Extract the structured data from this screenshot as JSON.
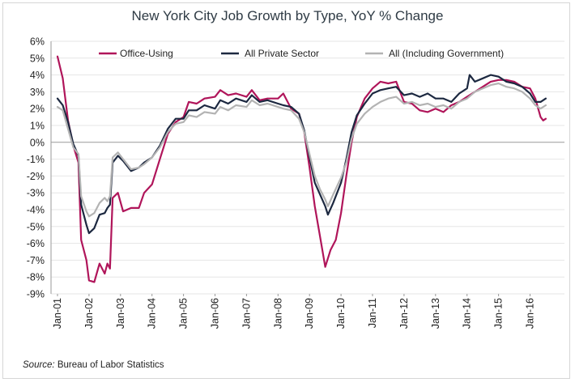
{
  "title": "New York City Job Growth by Type, YoY % Change",
  "source": {
    "label": "Source:",
    "text": "Bureau of Labor Statistics"
  },
  "colors": {
    "office": "#b0155a",
    "private": "#1c2840",
    "all": "#b3b3b3",
    "grid": "#e6e6e6"
  },
  "chart_data": {
    "type": "line",
    "title": "New York City Job Growth by Type, YoY % Change",
    "xlabel": "",
    "ylabel": "",
    "ylim": [
      -9,
      6
    ],
    "y_ticks": [
      "6%",
      "5%",
      "4%",
      "3%",
      "2%",
      "1%",
      "0%",
      "-1%",
      "-2%",
      "-3%",
      "-4%",
      "-5%",
      "-6%",
      "-7%",
      "-8%",
      "-9%"
    ],
    "x_tick_labels": [
      "Jan-01",
      "Jan-02",
      "Jan-03",
      "Jan-04",
      "Jan-05",
      "Jan-06",
      "Jan-07",
      "Jan-08",
      "Jan-09",
      "Jan-10",
      "Jan-11",
      "Jan-12",
      "Jan-13",
      "Jan-14",
      "Jan-15",
      "Jan-16"
    ],
    "grid": "horizontal",
    "legend_position": "top",
    "series": [
      {
        "name": "Office-Using",
        "points": [
          [
            "2001-01",
            5.1
          ],
          [
            "2001-03",
            3.8
          ],
          [
            "2001-05",
            1.3
          ],
          [
            "2001-07",
            -0.2
          ],
          [
            "2001-09",
            -1.2
          ],
          [
            "2001-10",
            -5.8
          ],
          [
            "2001-12",
            -7.0
          ],
          [
            "2002-01",
            -8.2
          ],
          [
            "2002-03",
            -8.3
          ],
          [
            "2002-05",
            -7.2
          ],
          [
            "2002-07",
            -7.8
          ],
          [
            "2002-08",
            -7.2
          ],
          [
            "2002-09",
            -7.5
          ],
          [
            "2002-10",
            -3.3
          ],
          [
            "2002-12",
            -3.0
          ],
          [
            "2003-02",
            -4.1
          ],
          [
            "2003-05",
            -3.9
          ],
          [
            "2003-08",
            -3.9
          ],
          [
            "2003-10",
            -3.0
          ],
          [
            "2004-01",
            -2.5
          ],
          [
            "2004-04",
            -1.0
          ],
          [
            "2004-07",
            0.5
          ],
          [
            "2004-10",
            1.2
          ],
          [
            "2005-01",
            1.5
          ],
          [
            "2005-03",
            2.4
          ],
          [
            "2005-06",
            2.3
          ],
          [
            "2005-09",
            2.6
          ],
          [
            "2006-01",
            2.7
          ],
          [
            "2006-03",
            3.1
          ],
          [
            "2006-06",
            2.8
          ],
          [
            "2006-09",
            2.9
          ],
          [
            "2007-01",
            2.7
          ],
          [
            "2007-03",
            3.1
          ],
          [
            "2007-06",
            2.5
          ],
          [
            "2007-09",
            2.6
          ],
          [
            "2008-01",
            2.6
          ],
          [
            "2008-03",
            2.9
          ],
          [
            "2008-06",
            2.0
          ],
          [
            "2008-09",
            1.7
          ],
          [
            "2008-11",
            0.6
          ],
          [
            "2009-01",
            -1.5
          ],
          [
            "2009-03",
            -3.8
          ],
          [
            "2009-05",
            -5.6
          ],
          [
            "2009-07",
            -7.4
          ],
          [
            "2009-09",
            -6.4
          ],
          [
            "2009-11",
            -5.8
          ],
          [
            "2010-01",
            -4.2
          ],
          [
            "2010-03",
            -2.0
          ],
          [
            "2010-05",
            0.0
          ],
          [
            "2010-07",
            1.5
          ],
          [
            "2010-10",
            2.6
          ],
          [
            "2011-01",
            3.2
          ],
          [
            "2011-04",
            3.6
          ],
          [
            "2011-07",
            3.5
          ],
          [
            "2011-10",
            3.6
          ],
          [
            "2012-01",
            2.4
          ],
          [
            "2012-04",
            2.3
          ],
          [
            "2012-07",
            1.9
          ],
          [
            "2012-10",
            1.8
          ],
          [
            "2013-01",
            2.0
          ],
          [
            "2013-04",
            1.8
          ],
          [
            "2013-07",
            2.2
          ],
          [
            "2013-10",
            2.4
          ],
          [
            "2014-01",
            2.7
          ],
          [
            "2014-04",
            3.0
          ],
          [
            "2014-07",
            3.3
          ],
          [
            "2014-10",
            3.6
          ],
          [
            "2015-01",
            3.7
          ],
          [
            "2015-04",
            3.7
          ],
          [
            "2015-07",
            3.6
          ],
          [
            "2015-10",
            3.3
          ],
          [
            "2016-01",
            3.2
          ],
          [
            "2016-03",
            2.6
          ],
          [
            "2016-05",
            1.5
          ],
          [
            "2016-06",
            1.3
          ],
          [
            "2016-07",
            1.4
          ]
        ]
      },
      {
        "name": "All Private Sector",
        "points": [
          [
            "2001-01",
            2.6
          ],
          [
            "2001-03",
            2.2
          ],
          [
            "2001-05",
            1.2
          ],
          [
            "2001-07",
            -0.1
          ],
          [
            "2001-09",
            -0.8
          ],
          [
            "2001-10",
            -3.7
          ],
          [
            "2001-12",
            -4.9
          ],
          [
            "2002-01",
            -5.4
          ],
          [
            "2002-03",
            -5.1
          ],
          [
            "2002-05",
            -4.3
          ],
          [
            "2002-07",
            -4.2
          ],
          [
            "2002-08",
            -3.9
          ],
          [
            "2002-09",
            -3.7
          ],
          [
            "2002-10",
            -1.2
          ],
          [
            "2002-12",
            -0.8
          ],
          [
            "2003-02",
            -1.1
          ],
          [
            "2003-05",
            -1.7
          ],
          [
            "2003-08",
            -1.5
          ],
          [
            "2003-10",
            -1.2
          ],
          [
            "2004-01",
            -0.9
          ],
          [
            "2004-04",
            -0.2
          ],
          [
            "2004-07",
            0.8
          ],
          [
            "2004-10",
            1.4
          ],
          [
            "2005-01",
            1.4
          ],
          [
            "2005-03",
            1.9
          ],
          [
            "2005-06",
            1.9
          ],
          [
            "2005-09",
            2.2
          ],
          [
            "2006-01",
            2.0
          ],
          [
            "2006-03",
            2.5
          ],
          [
            "2006-06",
            2.3
          ],
          [
            "2006-09",
            2.6
          ],
          [
            "2007-01",
            2.4
          ],
          [
            "2007-03",
            2.8
          ],
          [
            "2007-06",
            2.4
          ],
          [
            "2007-09",
            2.5
          ],
          [
            "2008-01",
            2.3
          ],
          [
            "2008-03",
            2.2
          ],
          [
            "2008-06",
            2.1
          ],
          [
            "2008-09",
            1.7
          ],
          [
            "2008-11",
            0.7
          ],
          [
            "2009-01",
            -0.9
          ],
          [
            "2009-03",
            -2.4
          ],
          [
            "2009-05",
            -3.1
          ],
          [
            "2009-07",
            -3.8
          ],
          [
            "2009-08",
            -4.3
          ],
          [
            "2009-10",
            -3.6
          ],
          [
            "2010-01",
            -2.4
          ],
          [
            "2010-03",
            -1.0
          ],
          [
            "2010-05",
            0.6
          ],
          [
            "2010-07",
            1.6
          ],
          [
            "2010-10",
            2.3
          ],
          [
            "2011-01",
            2.9
          ],
          [
            "2011-04",
            3.1
          ],
          [
            "2011-07",
            3.2
          ],
          [
            "2011-10",
            3.3
          ],
          [
            "2012-01",
            2.8
          ],
          [
            "2012-04",
            2.9
          ],
          [
            "2012-07",
            2.7
          ],
          [
            "2012-10",
            2.9
          ],
          [
            "2013-01",
            2.6
          ],
          [
            "2013-04",
            2.6
          ],
          [
            "2013-07",
            2.4
          ],
          [
            "2013-10",
            2.9
          ],
          [
            "2014-01",
            3.2
          ],
          [
            "2014-02",
            4.0
          ],
          [
            "2014-04",
            3.6
          ],
          [
            "2014-07",
            3.8
          ],
          [
            "2014-10",
            4.0
          ],
          [
            "2015-01",
            3.9
          ],
          [
            "2015-04",
            3.6
          ],
          [
            "2015-07",
            3.5
          ],
          [
            "2015-10",
            3.3
          ],
          [
            "2016-01",
            2.9
          ],
          [
            "2016-03",
            2.4
          ],
          [
            "2016-05",
            2.4
          ],
          [
            "2016-07",
            2.6
          ]
        ]
      },
      {
        "name": "All (Including Government)",
        "points": [
          [
            "2001-01",
            2.1
          ],
          [
            "2001-03",
            1.9
          ],
          [
            "2001-05",
            0.8
          ],
          [
            "2001-07",
            -0.3
          ],
          [
            "2001-09",
            -0.7
          ],
          [
            "2001-10",
            -3.2
          ],
          [
            "2001-12",
            -4.1
          ],
          [
            "2002-01",
            -4.4
          ],
          [
            "2002-03",
            -4.2
          ],
          [
            "2002-05",
            -3.6
          ],
          [
            "2002-07",
            -3.3
          ],
          [
            "2002-08",
            -3.5
          ],
          [
            "2002-09",
            -3.2
          ],
          [
            "2002-10",
            -0.9
          ],
          [
            "2002-12",
            -0.6
          ],
          [
            "2003-02",
            -1.0
          ],
          [
            "2003-05",
            -1.6
          ],
          [
            "2003-08",
            -1.5
          ],
          [
            "2003-10",
            -1.3
          ],
          [
            "2004-01",
            -0.9
          ],
          [
            "2004-04",
            -0.3
          ],
          [
            "2004-07",
            0.6
          ],
          [
            "2004-10",
            1.1
          ],
          [
            "2005-01",
            1.2
          ],
          [
            "2005-03",
            1.6
          ],
          [
            "2005-06",
            1.5
          ],
          [
            "2005-09",
            1.8
          ],
          [
            "2006-01",
            1.7
          ],
          [
            "2006-03",
            2.1
          ],
          [
            "2006-06",
            1.9
          ],
          [
            "2006-09",
            2.2
          ],
          [
            "2007-01",
            2.1
          ],
          [
            "2007-03",
            2.5
          ],
          [
            "2007-06",
            2.2
          ],
          [
            "2007-09",
            2.3
          ],
          [
            "2008-01",
            2.1
          ],
          [
            "2008-03",
            2.0
          ],
          [
            "2008-06",
            1.9
          ],
          [
            "2008-09",
            1.4
          ],
          [
            "2008-11",
            0.6
          ],
          [
            "2009-01",
            -0.7
          ],
          [
            "2009-03",
            -2.0
          ],
          [
            "2009-05",
            -2.8
          ],
          [
            "2009-07",
            -3.4
          ],
          [
            "2009-08",
            -3.8
          ],
          [
            "2009-10",
            -3.1
          ],
          [
            "2010-01",
            -2.1
          ],
          [
            "2010-03",
            -1.2
          ],
          [
            "2010-05",
            0.2
          ],
          [
            "2010-07",
            1.1
          ],
          [
            "2010-10",
            1.7
          ],
          [
            "2011-01",
            2.1
          ],
          [
            "2011-04",
            2.4
          ],
          [
            "2011-07",
            2.6
          ],
          [
            "2011-10",
            2.7
          ],
          [
            "2012-01",
            2.3
          ],
          [
            "2012-04",
            2.4
          ],
          [
            "2012-07",
            2.2
          ],
          [
            "2012-10",
            2.3
          ],
          [
            "2013-01",
            2.1
          ],
          [
            "2013-04",
            2.2
          ],
          [
            "2013-07",
            2.0
          ],
          [
            "2013-10",
            2.4
          ],
          [
            "2014-01",
            2.6
          ],
          [
            "2014-04",
            3.0
          ],
          [
            "2014-07",
            3.2
          ],
          [
            "2014-10",
            3.4
          ],
          [
            "2015-01",
            3.5
          ],
          [
            "2015-04",
            3.3
          ],
          [
            "2015-07",
            3.2
          ],
          [
            "2015-10",
            3.0
          ],
          [
            "2016-01",
            2.6
          ],
          [
            "2016-03",
            2.2
          ],
          [
            "2016-05",
            2.0
          ],
          [
            "2016-07",
            2.2
          ]
        ]
      }
    ]
  }
}
